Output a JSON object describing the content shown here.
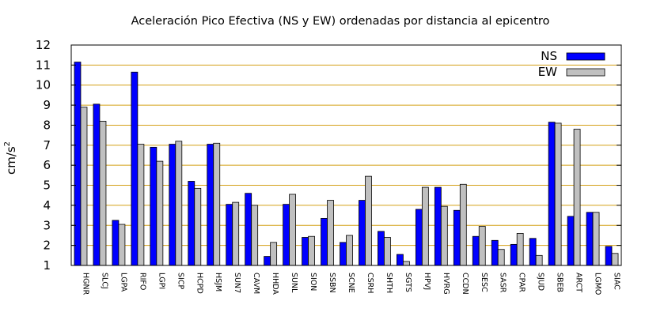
{
  "chart_data": {
    "type": "bar",
    "title": "Aceleración Pico Efectiva (NS y EW) ordenadas por distancia al epicentro",
    "ylabel": "cm/s",
    "ylabel_sup": "2",
    "xlabel": "",
    "ylim": [
      1,
      12
    ],
    "yticks": [
      1,
      2,
      3,
      4,
      5,
      6,
      7,
      8,
      9,
      10,
      11,
      12
    ],
    "grid": "horizontal",
    "legend_position": "top-right",
    "categories": [
      "HGNR",
      "SLCJ",
      "LGPA",
      "RIFO",
      "LGPI",
      "SICP",
      "HCPD",
      "HSJM",
      "SUN7",
      "CAVM",
      "HHDA",
      "SUNL",
      "SION",
      "SSBN",
      "SCNE",
      "CSRH",
      "SHTH",
      "SGTS",
      "HPVJ",
      "HVRG",
      "CCDN",
      "SESC",
      "SASR",
      "CPAR",
      "SJUD",
      "SBEB",
      "ARCT",
      "LGMO",
      "SIAC"
    ],
    "series": [
      {
        "name": "NS",
        "color": "#0000ff",
        "values": [
          11.15,
          9.05,
          3.25,
          10.65,
          6.9,
          7.05,
          5.2,
          7.05,
          4.05,
          4.6,
          1.45,
          4.05,
          2.4,
          3.35,
          2.15,
          4.25,
          2.7,
          1.55,
          3.8,
          4.9,
          3.75,
          2.45,
          2.25,
          2.05,
          2.35,
          8.15,
          3.45,
          3.65,
          1.95
        ]
      },
      {
        "name": "EW",
        "color": "#c0c0c0",
        "values": [
          8.9,
          8.2,
          3.05,
          7.05,
          6.2,
          7.2,
          4.85,
          7.1,
          4.15,
          4.0,
          2.15,
          4.55,
          2.45,
          4.25,
          2.5,
          5.45,
          2.4,
          1.2,
          4.9,
          3.95,
          5.05,
          2.95,
          1.8,
          2.6,
          1.5,
          8.1,
          7.8,
          3.65,
          1.6
        ]
      }
    ]
  },
  "colors": {
    "grid": "#d4a017",
    "frame": "#000000"
  }
}
